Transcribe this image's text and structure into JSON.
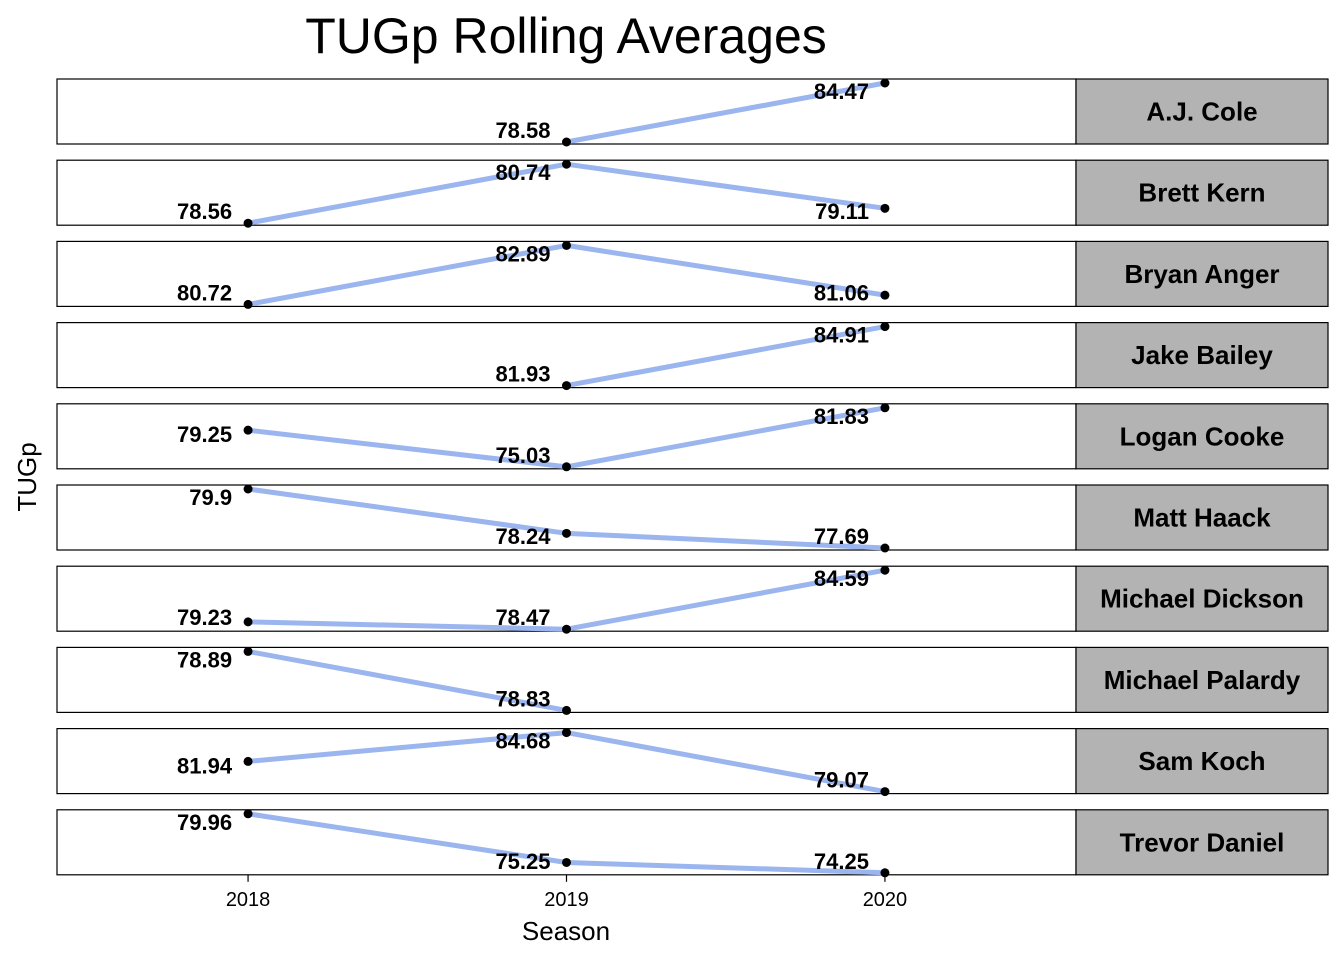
{
  "chart_data": {
    "type": "line",
    "title": "TUGp Rolling Averages",
    "xlabel": "Season",
    "ylabel": "TUGp",
    "x": [
      2018,
      2019,
      2020
    ],
    "x_tick_labels": [
      "2018",
      "2019",
      "2020"
    ],
    "facet_by": "player",
    "y_scale": "free",
    "grid": false,
    "legend": "none",
    "line_color": "#9bb5ef",
    "point_color": "#000000",
    "strip_color": "#b3b3b3",
    "series": [
      {
        "name": "A.J. Cole",
        "values": [
          null,
          78.58,
          84.47
        ],
        "labels": [
          "",
          "78.58",
          "84.47"
        ]
      },
      {
        "name": "Brett Kern",
        "values": [
          78.56,
          80.74,
          79.11
        ],
        "labels": [
          "78.56",
          "80.74",
          "79.11"
        ]
      },
      {
        "name": "Bryan Anger",
        "values": [
          80.72,
          82.89,
          81.06
        ],
        "labels": [
          "80.72",
          "82.89",
          "81.06"
        ]
      },
      {
        "name": "Jake Bailey",
        "values": [
          null,
          81.93,
          84.91
        ],
        "labels": [
          "",
          "81.93",
          "84.91"
        ]
      },
      {
        "name": "Logan Cooke",
        "values": [
          79.25,
          75.03,
          81.83
        ],
        "labels": [
          "79.25",
          "75.03",
          "81.83"
        ]
      },
      {
        "name": "Matt Haack",
        "values": [
          79.9,
          78.24,
          77.69
        ],
        "labels": [
          "79.9",
          "78.24",
          "77.69"
        ]
      },
      {
        "name": "Michael Dickson",
        "values": [
          79.23,
          78.47,
          84.59
        ],
        "labels": [
          "79.23",
          "78.47",
          "84.59"
        ]
      },
      {
        "name": "Michael Palardy",
        "values": [
          78.89,
          78.83,
          null
        ],
        "labels": [
          "78.89",
          "78.83",
          ""
        ]
      },
      {
        "name": "Sam Koch",
        "values": [
          81.94,
          84.68,
          79.07
        ],
        "labels": [
          "81.94",
          "84.68",
          "79.07"
        ]
      },
      {
        "name": "Trevor Daniel",
        "values": [
          79.96,
          75.25,
          74.25
        ],
        "labels": [
          "79.96",
          "75.25",
          "74.25"
        ]
      }
    ]
  }
}
